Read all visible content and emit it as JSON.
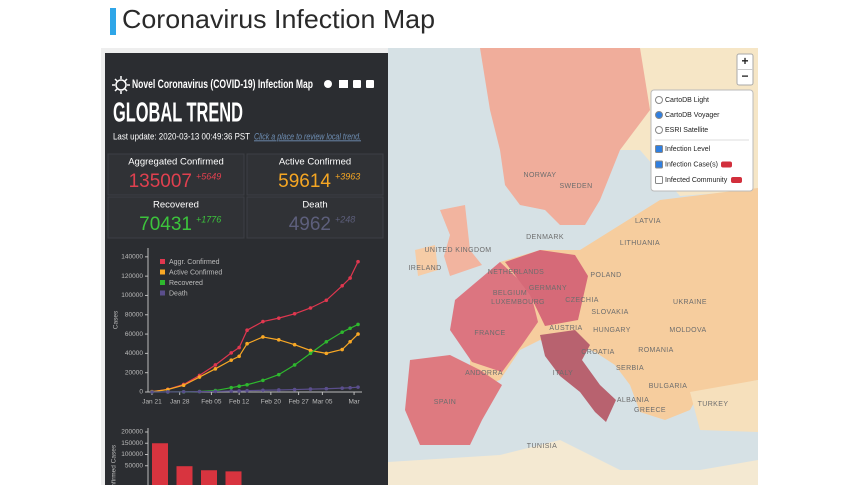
{
  "header": {
    "title": "Coronavirus Infection Map"
  },
  "panel": {
    "title": "Novel Coronavirus (COVID-19) Infection Map",
    "heading": "GLOBAL TREND",
    "last_update": "Last update: 2020-03-13 00:49:36 PST",
    "hint": "Click a place to review local trend.",
    "stats": [
      {
        "label": "Aggregated Confirmed",
        "value": 135007,
        "delta": "+5649",
        "color": "#e0404f"
      },
      {
        "label": "Active Confirmed",
        "value": 59614,
        "delta": "+3963",
        "color": "#f5a623"
      },
      {
        "label": "Recovered",
        "value": 70431,
        "delta": "+1776",
        "color": "#3cc43c"
      },
      {
        "label": "Death",
        "value": 4962,
        "delta": "+248",
        "color": "#5d5f7c"
      }
    ]
  },
  "trend_chart": {
    "type": "line",
    "y_label": "Cases",
    "x": [
      0,
      4,
      8,
      12,
      16,
      20,
      22,
      24,
      28,
      32,
      36,
      40,
      44,
      48,
      50,
      52
    ],
    "xlim": [
      -1,
      53
    ],
    "xticks": [
      {
        "value": 0,
        "label": "Jan 21"
      },
      {
        "value": 7,
        "label": "Jan 28"
      },
      {
        "value": 15,
        "label": "Feb 05"
      },
      {
        "value": 22,
        "label": "Feb 12"
      },
      {
        "value": 30,
        "label": "Feb 20"
      },
      {
        "value": 37,
        "label": "Feb 27"
      },
      {
        "value": 43,
        "label": "Mar 05"
      },
      {
        "value": 51,
        "label": "Mar"
      }
    ],
    "ylim": [
      0,
      145000
    ],
    "yticks": [
      0,
      20000,
      40000,
      60000,
      80000,
      100000,
      120000,
      140000
    ],
    "series": [
      {
        "name": "Aggr. Confirmed",
        "color": "#e0374f",
        "values": [
          300,
          2800,
          7800,
          17200,
          28000,
          40500,
          46000,
          64000,
          73000,
          76500,
          81000,
          87000,
          95000,
          110000,
          118000,
          135000
        ]
      },
      {
        "name": "Active Confirmed",
        "color": "#f9a825",
        "values": [
          280,
          2600,
          7000,
          15500,
          24000,
          33000,
          37000,
          50000,
          57000,
          54000,
          49000,
          43000,
          40000,
          44000,
          52000,
          60000
        ]
      },
      {
        "name": "Recovered",
        "color": "#2eb82e",
        "values": [
          0,
          50,
          150,
          500,
          1500,
          4500,
          6000,
          7500,
          12000,
          18000,
          28000,
          40000,
          52000,
          62000,
          66000,
          70000
        ]
      },
      {
        "name": "Death",
        "color": "#5a4e8c",
        "values": [
          10,
          80,
          200,
          400,
          600,
          1000,
          1100,
          1400,
          1800,
          2100,
          2500,
          3000,
          3400,
          4000,
          4400,
          5000
        ]
      }
    ]
  },
  "bar_chart": {
    "type": "bar",
    "y_label": "Confirmed Cases",
    "ylim": [
      0,
      200000
    ],
    "yticks": [
      50000,
      100000,
      150000,
      200000
    ],
    "values": [
      150000,
      48000,
      30000,
      25000
    ],
    "color": "#d8343f"
  },
  "map": {
    "labels": [
      "NORWAY",
      "SWEDEN",
      "LATVIA",
      "LITHUANIA",
      "DENMARK",
      "UNITED KINGDOM",
      "IRELAND",
      "NETHERLANDS",
      "BELGIUM",
      "GERMANY",
      "LUXEMBOURG",
      "POLAND",
      "CZECHIA",
      "SLOVAKIA",
      "UKRAINE",
      "AUSTRIA",
      "HUNGARY",
      "MOLDOVA",
      "FRANCE",
      "ROMANIA",
      "CROATIA",
      "SERBIA",
      "BULGARIA",
      "ANDORRA",
      "ITALY",
      "SPAIN",
      "ALBANIA",
      "GREECE",
      "TURKEY",
      "TUNISIA"
    ]
  },
  "layers": {
    "base": [
      "CartoDB Light",
      "CartoDB Voyager",
      "ESRI Satellite"
    ],
    "overlays": [
      "Infection Level",
      "Infection Case(s)",
      "Infected Community"
    ]
  },
  "zoom": {
    "in": "+",
    "out": "−"
  }
}
